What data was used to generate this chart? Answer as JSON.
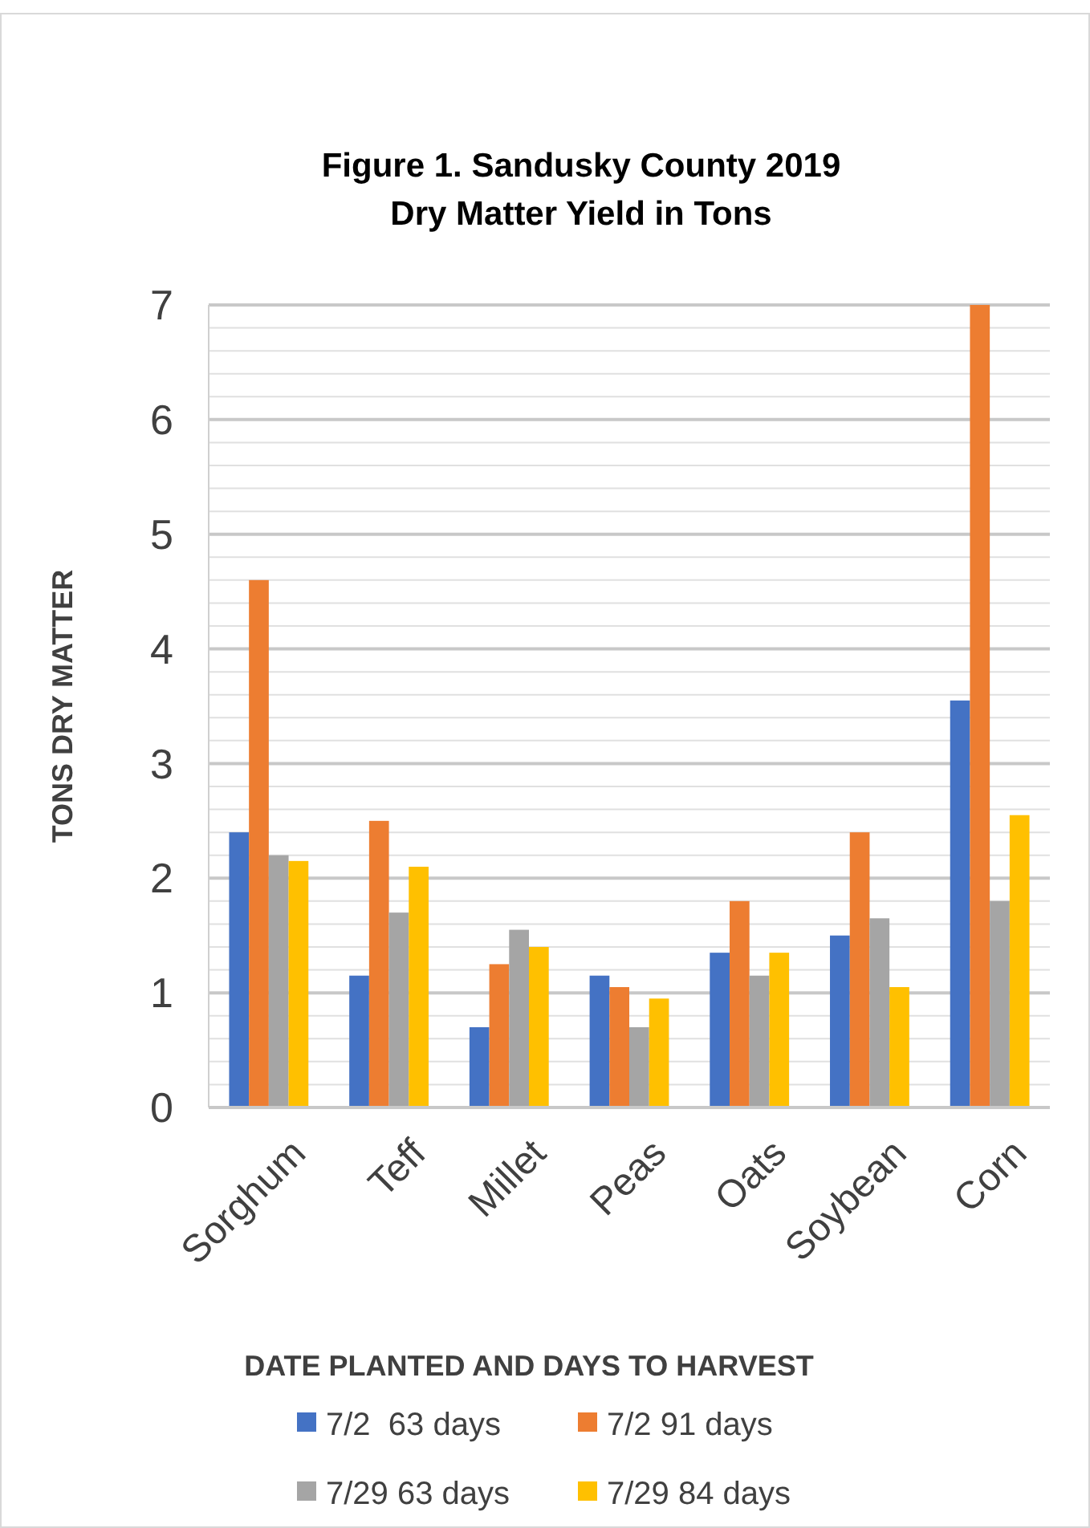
{
  "chart_data": {
    "type": "bar",
    "title": "Figure 1. Sandusky County 2019\nDry Matter Yield in Tons",
    "ylabel": "TONS DRY MATTER",
    "xlabel": "DATE PLANTED AND DAYS TO HARVEST",
    "categories": [
      "Sorghum",
      "Teff",
      "Millet",
      "Peas",
      "Oats",
      "Soybean",
      "Corn"
    ],
    "series": [
      {
        "name": "7/2  63 days",
        "color": "#4472c4",
        "values": [
          2.4,
          1.15,
          0.7,
          1.15,
          1.35,
          1.5,
          3.55
        ]
      },
      {
        "name": "7/2 91 days",
        "color": "#ed7d31",
        "values": [
          4.6,
          2.5,
          1.25,
          1.05,
          1.8,
          2.4,
          7.0
        ]
      },
      {
        "name": "7/29 63 days",
        "color": "#a5a5a5",
        "values": [
          2.2,
          1.7,
          1.55,
          0.7,
          1.15,
          1.65,
          1.8
        ]
      },
      {
        "name": "7/29 84 days",
        "color": "#ffc000",
        "values": [
          2.15,
          2.1,
          1.4,
          0.95,
          1.35,
          1.05,
          2.55
        ]
      }
    ],
    "ylim": [
      0,
      7
    ],
    "yticks": [
      0,
      {
        "value": 0.2,
        "label": null
      },
      {
        "value": 0.4,
        "label": null
      },
      {
        "value": 0.6,
        "label": null
      },
      {
        "value": 0.8,
        "label": null
      },
      1,
      {
        "value": 1.2,
        "label": null
      },
      {
        "value": 1.4,
        "label": null
      },
      {
        "value": 1.6,
        "label": null
      },
      {
        "value": 1.8,
        "label": null
      },
      2,
      {
        "value": 2.2,
        "label": null
      },
      {
        "value": 2.4,
        "label": null
      },
      {
        "value": 2.6,
        "label": null
      },
      {
        "value": 2.8,
        "label": null
      },
      3,
      {
        "value": 3.2,
        "label": null
      },
      {
        "value": 3.4,
        "label": null
      },
      {
        "value": 3.6,
        "label": null
      },
      {
        "value": 3.8,
        "label": null
      },
      4,
      {
        "value": 4.2,
        "label": null
      },
      {
        "value": 4.4,
        "label": null
      },
      {
        "value": 4.6,
        "label": null
      },
      {
        "value": 4.8,
        "label": null
      },
      5,
      {
        "value": 5.2,
        "label": null
      },
      {
        "value": 5.4,
        "label": null
      },
      {
        "value": 5.6,
        "label": null
      },
      {
        "value": 5.8,
        "label": null
      },
      6,
      {
        "value": 6.2,
        "label": null
      },
      {
        "value": 6.4,
        "label": null
      },
      {
        "value": 6.6,
        "label": null
      },
      {
        "value": 6.8,
        "label": null
      },
      7
    ],
    "grid": true,
    "legend": "bottom"
  }
}
